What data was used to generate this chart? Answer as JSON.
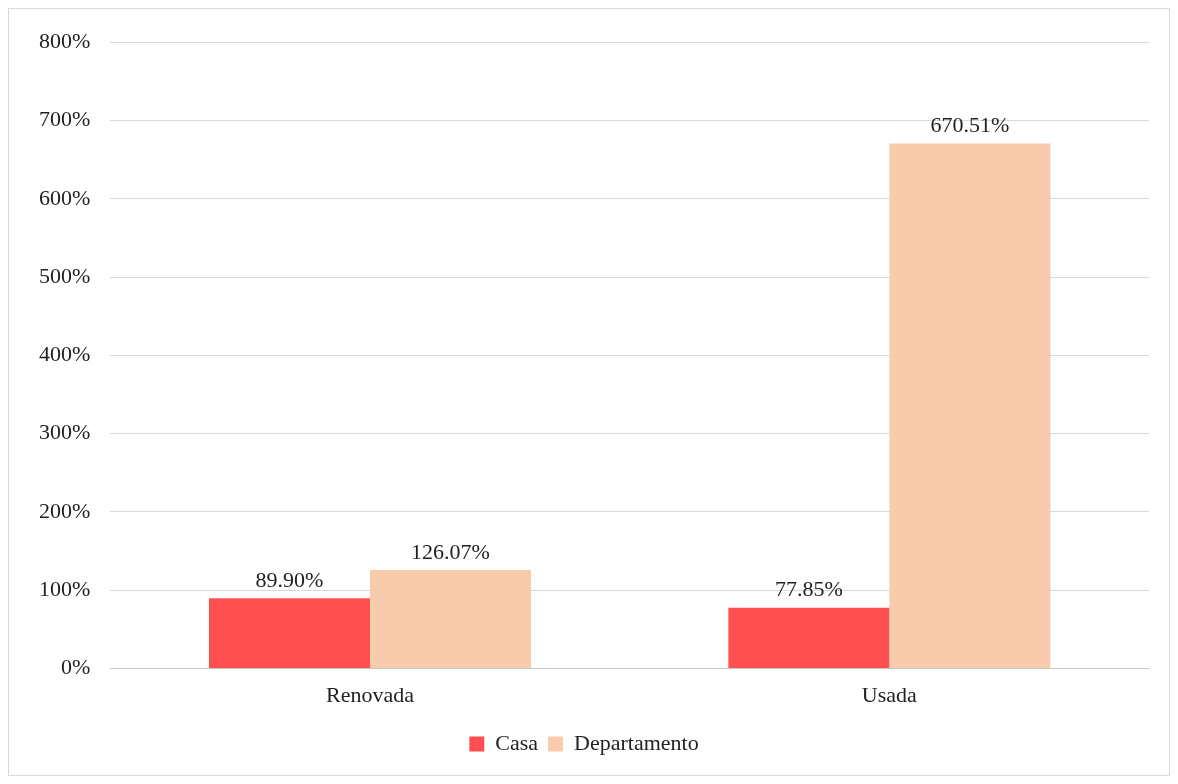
{
  "chart_data": {
    "type": "bar",
    "categories": [
      "Renovada",
      "Usada"
    ],
    "series": [
      {
        "name": "Casa",
        "color": "#ff5050",
        "values": [
          89.9,
          77.85
        ],
        "value_labels": [
          "89.90%",
          "77.85%"
        ]
      },
      {
        "name": "Departamento",
        "color": "#f8cbad",
        "values": [
          126.07,
          670.51
        ],
        "value_labels": [
          "126.07%",
          "670.51%"
        ]
      }
    ],
    "ylim": [
      0,
      800
    ],
    "yticks": [
      {
        "value": 0,
        "label": "0%"
      },
      {
        "value": 100,
        "label": "100%"
      },
      {
        "value": 200,
        "label": "200%"
      },
      {
        "value": 300,
        "label": "300%"
      },
      {
        "value": 400,
        "label": "400%"
      },
      {
        "value": 500,
        "label": "500%"
      },
      {
        "value": 600,
        "label": "600%"
      },
      {
        "value": 700,
        "label": "700%"
      },
      {
        "value": 800,
        "label": "800%"
      }
    ],
    "grid": "y",
    "legend": "bottom"
  }
}
